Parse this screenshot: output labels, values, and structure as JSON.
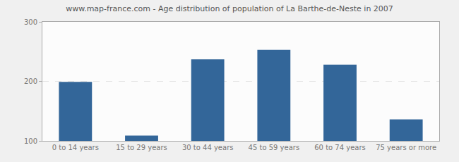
{
  "chart_data": {
    "type": "bar",
    "title": "www.map-france.com - Age distribution of population of La Barthe-de-Neste in 2007",
    "categories": [
      "0 to 14 years",
      "15 to 29 years",
      "30 to 44 years",
      "45 to 59 years",
      "60 to 74 years",
      "75 years or more"
    ],
    "values": [
      199,
      109,
      237,
      253,
      228,
      136
    ],
    "color": "#336699",
    "ylim": [
      100,
      300
    ],
    "yticks": [
      100,
      200,
      300
    ],
    "grid": true
  }
}
